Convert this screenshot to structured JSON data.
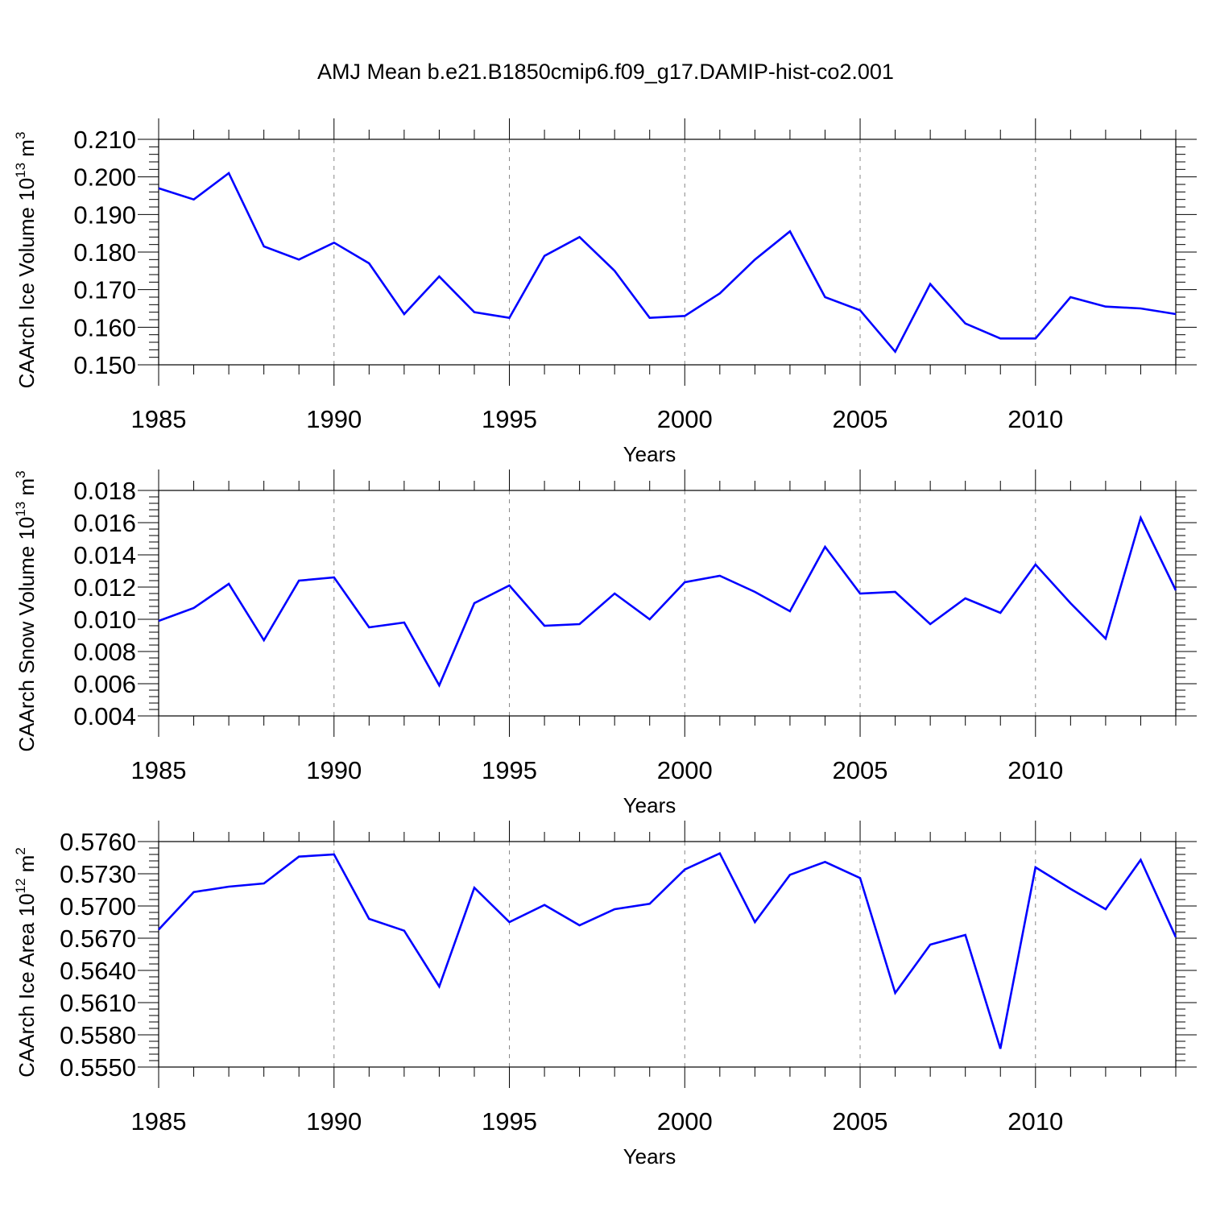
{
  "title": "AMJ Mean b.e21.B1850cmip6.f09_g17.DAMIP-hist-co2.001",
  "colors": {
    "line": "#0000ff",
    "axis": "#000000",
    "grid": "#888888"
  },
  "chart_data": [
    {
      "type": "line",
      "ylabel": "CAArch Ice Volume 10",
      "ylabel_exp": "13",
      "ylabel_unit": " m",
      "ylabel_unit_exp": "3",
      "xlabel": "Years",
      "xlim": [
        1985,
        2014
      ],
      "ylim": [
        0.15,
        0.21
      ],
      "x_ticks": [
        "1985",
        "1990",
        "1995",
        "2000",
        "2005",
        "2010"
      ],
      "y_ticks": [
        "0.150",
        "0.160",
        "0.170",
        "0.180",
        "0.190",
        "0.200",
        "0.210"
      ],
      "grid": "vertical dashed at major x ticks",
      "x": [
        1985,
        1986,
        1987,
        1988,
        1989,
        1990,
        1991,
        1992,
        1993,
        1994,
        1995,
        1996,
        1997,
        1998,
        1999,
        2000,
        2001,
        2002,
        2003,
        2004,
        2005,
        2006,
        2007,
        2008,
        2009,
        2010,
        2011,
        2012,
        2013,
        2014
      ],
      "values": [
        0.197,
        0.194,
        0.201,
        0.1815,
        0.178,
        0.1825,
        0.177,
        0.1635,
        0.1735,
        0.164,
        0.1625,
        0.179,
        0.184,
        0.175,
        0.1625,
        0.163,
        0.169,
        0.178,
        0.1855,
        0.168,
        0.1645,
        0.1535,
        0.1715,
        0.161,
        0.157,
        0.157,
        0.168,
        0.1655,
        0.165,
        0.1635
      ]
    },
    {
      "type": "line",
      "ylabel": "CAArch Snow Volume 10",
      "ylabel_exp": "13",
      "ylabel_unit": " m",
      "ylabel_unit_exp": "3",
      "xlabel": "Years",
      "xlim": [
        1985,
        2014
      ],
      "ylim": [
        0.004,
        0.018
      ],
      "x_ticks": [
        "1985",
        "1990",
        "1995",
        "2000",
        "2005",
        "2010"
      ],
      "y_ticks": [
        "0.004",
        "0.006",
        "0.008",
        "0.010",
        "0.012",
        "0.014",
        "0.016",
        "0.018"
      ],
      "grid": "vertical dashed at major x ticks",
      "x": [
        1985,
        1986,
        1987,
        1988,
        1989,
        1990,
        1991,
        1992,
        1993,
        1994,
        1995,
        1996,
        1997,
        1998,
        1999,
        2000,
        2001,
        2002,
        2003,
        2004,
        2005,
        2006,
        2007,
        2008,
        2009,
        2010,
        2011,
        2012,
        2013,
        2014
      ],
      "values": [
        0.0099,
        0.0107,
        0.0122,
        0.0087,
        0.0124,
        0.0126,
        0.0095,
        0.0098,
        0.0059,
        0.011,
        0.0121,
        0.0096,
        0.0097,
        0.0116,
        0.01,
        0.0123,
        0.0127,
        0.0117,
        0.0105,
        0.0145,
        0.0116,
        0.0117,
        0.0097,
        0.0113,
        0.0104,
        0.0134,
        0.011,
        0.0088,
        0.0163,
        0.0118
      ]
    },
    {
      "type": "line",
      "ylabel": "CAArch Ice Area 10",
      "ylabel_exp": "12",
      "ylabel_unit": " m",
      "ylabel_unit_exp": "2",
      "xlabel": "Years",
      "xlim": [
        1985,
        2014
      ],
      "ylim": [
        0.555,
        0.576
      ],
      "x_ticks": [
        "1985",
        "1990",
        "1995",
        "2000",
        "2005",
        "2010"
      ],
      "y_ticks": [
        "0.5550",
        "0.5580",
        "0.5610",
        "0.5640",
        "0.5670",
        "0.5700",
        "0.5730",
        "0.5760"
      ],
      "grid": "vertical dashed at major x ticks",
      "x": [
        1985,
        1986,
        1987,
        1988,
        1989,
        1990,
        1991,
        1992,
        1993,
        1994,
        1995,
        1996,
        1997,
        1998,
        1999,
        2000,
        2001,
        2002,
        2003,
        2004,
        2005,
        2006,
        2007,
        2008,
        2009,
        2010,
        2011,
        2012,
        2013,
        2014
      ],
      "values": [
        0.5678,
        0.5713,
        0.5718,
        0.5721,
        0.5746,
        0.5748,
        0.5688,
        0.5677,
        0.5625,
        0.5717,
        0.5685,
        0.5701,
        0.5682,
        0.5697,
        0.5702,
        0.5734,
        0.5749,
        0.5685,
        0.5729,
        0.5741,
        0.5726,
        0.5619,
        0.5664,
        0.5673,
        0.5567,
        0.5736,
        0.5716,
        0.5697,
        0.5743,
        0.5671
      ]
    }
  ]
}
